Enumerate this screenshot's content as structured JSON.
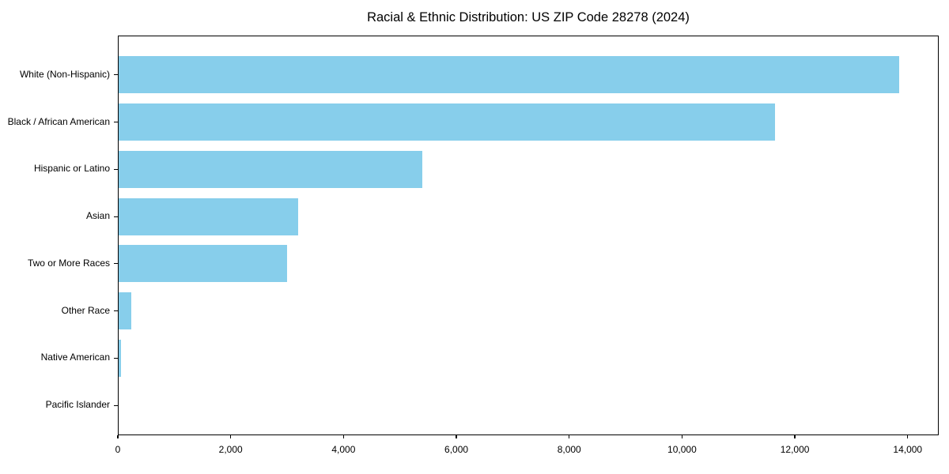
{
  "chart_data": {
    "type": "bar",
    "orientation": "horizontal",
    "title": "Racial & Ethnic Distribution: US ZIP Code 28278 (2024)",
    "categories": [
      "White (Non-Hispanic)",
      "Black / African American",
      "Hispanic or Latino",
      "Asian",
      "Two or More Races",
      "Other Race",
      "Native American",
      "Pacific Islander"
    ],
    "values": [
      13850,
      11650,
      5400,
      3190,
      3000,
      240,
      50,
      0
    ],
    "xlabel": "",
    "ylabel": "",
    "xlim": [
      0,
      14550
    ],
    "x_ticks": [
      0,
      2000,
      4000,
      6000,
      8000,
      10000,
      12000,
      14000
    ],
    "x_tick_labels": [
      "0",
      "2,000",
      "4,000",
      "6,000",
      "8,000",
      "10,000",
      "12,000",
      "14,000"
    ],
    "grid": false,
    "legend": null,
    "bar_color": "#87CEEB",
    "background_color": "#ffffff",
    "spine_color": "#000000"
  }
}
